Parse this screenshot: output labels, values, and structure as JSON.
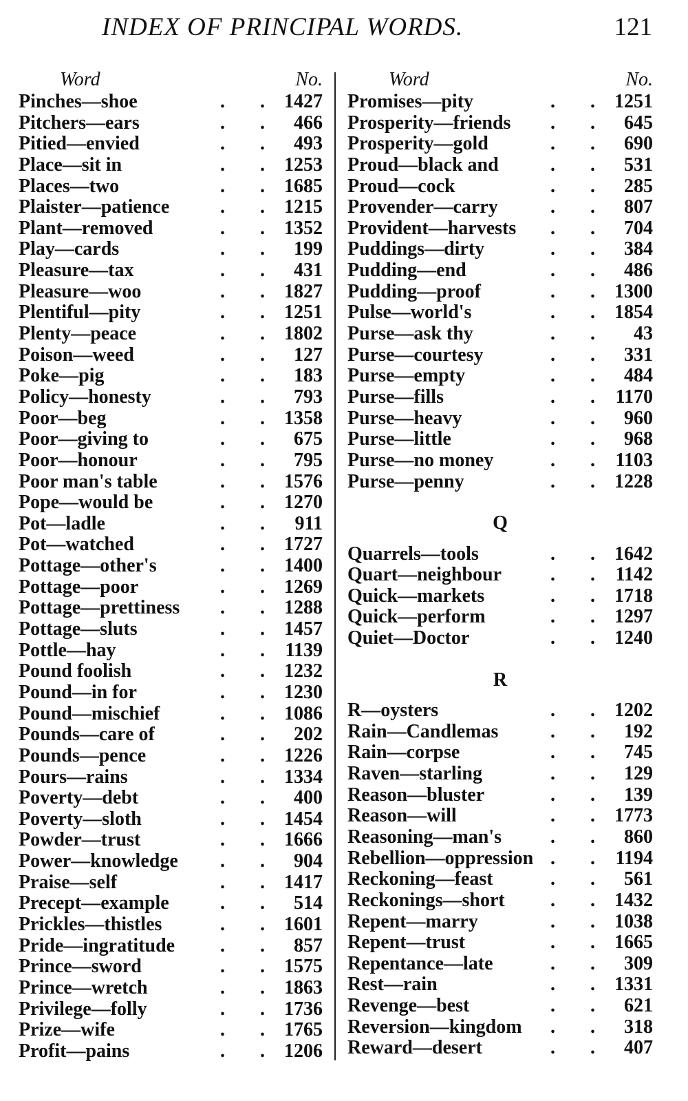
{
  "header": {
    "title": "INDEX OF PRINCIPAL WORDS.",
    "page_number": "121"
  },
  "column_headers": {
    "word": "Word",
    "number": "No."
  },
  "leader": ". .",
  "left_column": [
    {
      "word": "Pinches—shoe",
      "no": "1427"
    },
    {
      "word": "Pitchers—ears",
      "no": "466"
    },
    {
      "word": "Pitied—envied",
      "no": "493"
    },
    {
      "word": "Place—sit in",
      "no": "1253"
    },
    {
      "word": "Places—two",
      "no": "1685"
    },
    {
      "word": "Plaister—patience",
      "no": "1215"
    },
    {
      "word": "Plant—removed",
      "no": "1352"
    },
    {
      "word": "Play—cards",
      "no": "199"
    },
    {
      "word": "Pleasure—tax",
      "no": "431"
    },
    {
      "word": "Pleasure—woo",
      "no": "1827"
    },
    {
      "word": "Plentiful—pity",
      "no": "1251"
    },
    {
      "word": "Plenty—peace",
      "no": "1802"
    },
    {
      "word": "Poison—weed",
      "no": "127"
    },
    {
      "word": "Poke—pig",
      "no": "183"
    },
    {
      "word": "Policy—honesty",
      "no": "793"
    },
    {
      "word": "Poor—beg",
      "no": "1358"
    },
    {
      "word": "Poor—giving to",
      "no": "675"
    },
    {
      "word": "Poor—honour",
      "no": "795"
    },
    {
      "word": "Poor man's table",
      "no": "1576"
    },
    {
      "word": "Pope—would be",
      "no": "1270"
    },
    {
      "word": "Pot—ladle",
      "no": "911"
    },
    {
      "word": "Pot—watched",
      "no": "1727"
    },
    {
      "word": "Pottage—other's",
      "no": "1400"
    },
    {
      "word": "Pottage—poor",
      "no": "1269"
    },
    {
      "word": "Pottage—prettiness",
      "no": "1288"
    },
    {
      "word": "Pottage—sluts",
      "no": "1457"
    },
    {
      "word": "Pottle—hay",
      "no": "1139"
    },
    {
      "word": "Pound foolish",
      "no": "1232"
    },
    {
      "word": "Pound—in for",
      "no": "1230"
    },
    {
      "word": "Pound—mischief",
      "no": "1086"
    },
    {
      "word": "Pounds—care of",
      "no": "202"
    },
    {
      "word": "Pounds—pence",
      "no": "1226"
    },
    {
      "word": "Pours—rains",
      "no": "1334"
    },
    {
      "word": "Poverty—debt",
      "no": "400"
    },
    {
      "word": "Poverty—sloth",
      "no": "1454"
    },
    {
      "word": "Powder—trust",
      "no": "1666"
    },
    {
      "word": "Power—knowledge",
      "no": "904"
    },
    {
      "word": "Praise—self",
      "no": "1417"
    },
    {
      "word": "Precept—example",
      "no": "514"
    },
    {
      "word": "Prickles—thistles",
      "no": "1601"
    },
    {
      "word": "Pride—ingratitude",
      "no": "857"
    },
    {
      "word": "Prince—sword",
      "no": "1575"
    },
    {
      "word": "Prince—wretch",
      "no": "1863"
    },
    {
      "word": "Privilege—folly",
      "no": "1736"
    },
    {
      "word": "Prize—wife",
      "no": "1765"
    },
    {
      "word": "Profit—pains",
      "no": "1206"
    }
  ],
  "right_column": [
    {
      "word": "Promises—pity",
      "no": "1251"
    },
    {
      "word": "Prosperity—friends",
      "no": "645"
    },
    {
      "word": "Prosperity—gold",
      "no": "690"
    },
    {
      "word": "Proud—black and",
      "no": "531"
    },
    {
      "word": "Proud—cock",
      "no": "285"
    },
    {
      "word": "Provender—carry",
      "no": "807"
    },
    {
      "word": "Provident—harvests",
      "no": "704"
    },
    {
      "word": "Puddings—dirty",
      "no": "384"
    },
    {
      "word": "Pudding—end",
      "no": "486"
    },
    {
      "word": "Pudding—proof",
      "no": "1300"
    },
    {
      "word": "Pulse—world's",
      "no": "1854"
    },
    {
      "word": "Purse—ask thy",
      "no": "43"
    },
    {
      "word": "Purse—courtesy",
      "no": "331"
    },
    {
      "word": "Purse—empty",
      "no": "484"
    },
    {
      "word": "Purse—fills",
      "no": "1170"
    },
    {
      "word": "Purse—heavy",
      "no": "960"
    },
    {
      "word": "Purse—little",
      "no": "968"
    },
    {
      "word": "Purse—no money",
      "no": "1103"
    },
    {
      "word": "Purse—penny",
      "no": "1228"
    },
    {
      "section": "Q"
    },
    {
      "word": "Quarrels—tools",
      "no": "1642"
    },
    {
      "word": "Quart—neighbour",
      "no": "1142"
    },
    {
      "word": "Quick—markets",
      "no": "1718"
    },
    {
      "word": "Quick—perform",
      "no": "1297"
    },
    {
      "word": "Quiet—Doctor",
      "no": "1240"
    },
    {
      "section": "R"
    },
    {
      "word": "R—oysters",
      "no": "1202"
    },
    {
      "word": "Rain—Candlemas",
      "no": "192"
    },
    {
      "word": "Rain—corpse",
      "no": "745"
    },
    {
      "word": "Raven—starling",
      "no": "129"
    },
    {
      "word": "Reason—bluster",
      "no": "139"
    },
    {
      "word": "Reason—will",
      "no": "1773"
    },
    {
      "word": "Reasoning—man's",
      "no": "860"
    },
    {
      "word": "Rebellion—oppression",
      "no": "1194"
    },
    {
      "word": "Reckoning—feast",
      "no": "561"
    },
    {
      "word": "Reckonings—short",
      "no": "1432"
    },
    {
      "word": "Repent—marry",
      "no": "1038"
    },
    {
      "word": "Repent—trust",
      "no": "1665"
    },
    {
      "word": "Repentance—late",
      "no": "309"
    },
    {
      "word": "Rest—rain",
      "no": "1331"
    },
    {
      "word": "Revenge—best",
      "no": "621"
    },
    {
      "word": "Reversion—kingdom",
      "no": "318"
    },
    {
      "word": "Reward—desert",
      "no": "407"
    }
  ]
}
